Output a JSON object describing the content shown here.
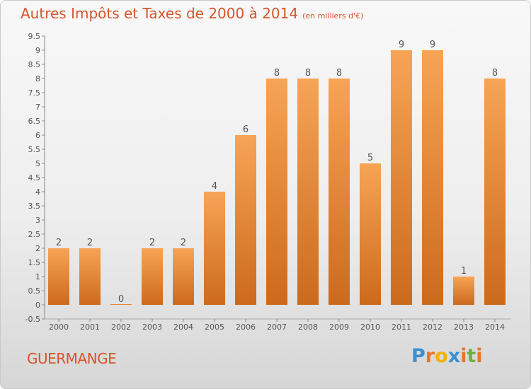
{
  "title": "Autres Impôts et Taxes de 2000 à 2014",
  "unit": "(en milliers d'€)",
  "commune": "GUERMANGE",
  "logo": {
    "letters": [
      "P",
      "r",
      "o",
      "x",
      "i",
      "t",
      "i"
    ],
    "colors": [
      "#3a8fd1",
      "#e8762b",
      "#f0b400",
      "#3a8fd1",
      "#e8762b",
      "#6cb33e",
      "#e8762b"
    ]
  },
  "colors": {
    "bar_top": "#f7a456",
    "bar_bottom": "#cc6a1c",
    "text": "#d6552a"
  },
  "chart_data": {
    "type": "bar",
    "categories": [
      "2000",
      "2001",
      "2002",
      "2003",
      "2004",
      "2005",
      "2006",
      "2007",
      "2008",
      "2009",
      "2010",
      "2011",
      "2012",
      "2013",
      "2014"
    ],
    "values": [
      2,
      2,
      0,
      2,
      2,
      4,
      6,
      8,
      8,
      8,
      5,
      9,
      9,
      1,
      8
    ],
    "data_labels": [
      "2",
      "2",
      "0",
      "2",
      "2",
      "4",
      "6",
      "8",
      "8",
      "8",
      "5",
      "9",
      "9",
      "1",
      "8"
    ],
    "y_ticks": [
      "-0.5",
      "0",
      "0.5",
      "1",
      "1.5",
      "2",
      "2.5",
      "3",
      "3.5",
      "4",
      "4.5",
      "5",
      "5.5",
      "6",
      "6.5",
      "7",
      "7.5",
      "8",
      "8.5",
      "9",
      "9.5"
    ],
    "ylim": [
      -0.5,
      9.5
    ],
    "grid": false
  }
}
